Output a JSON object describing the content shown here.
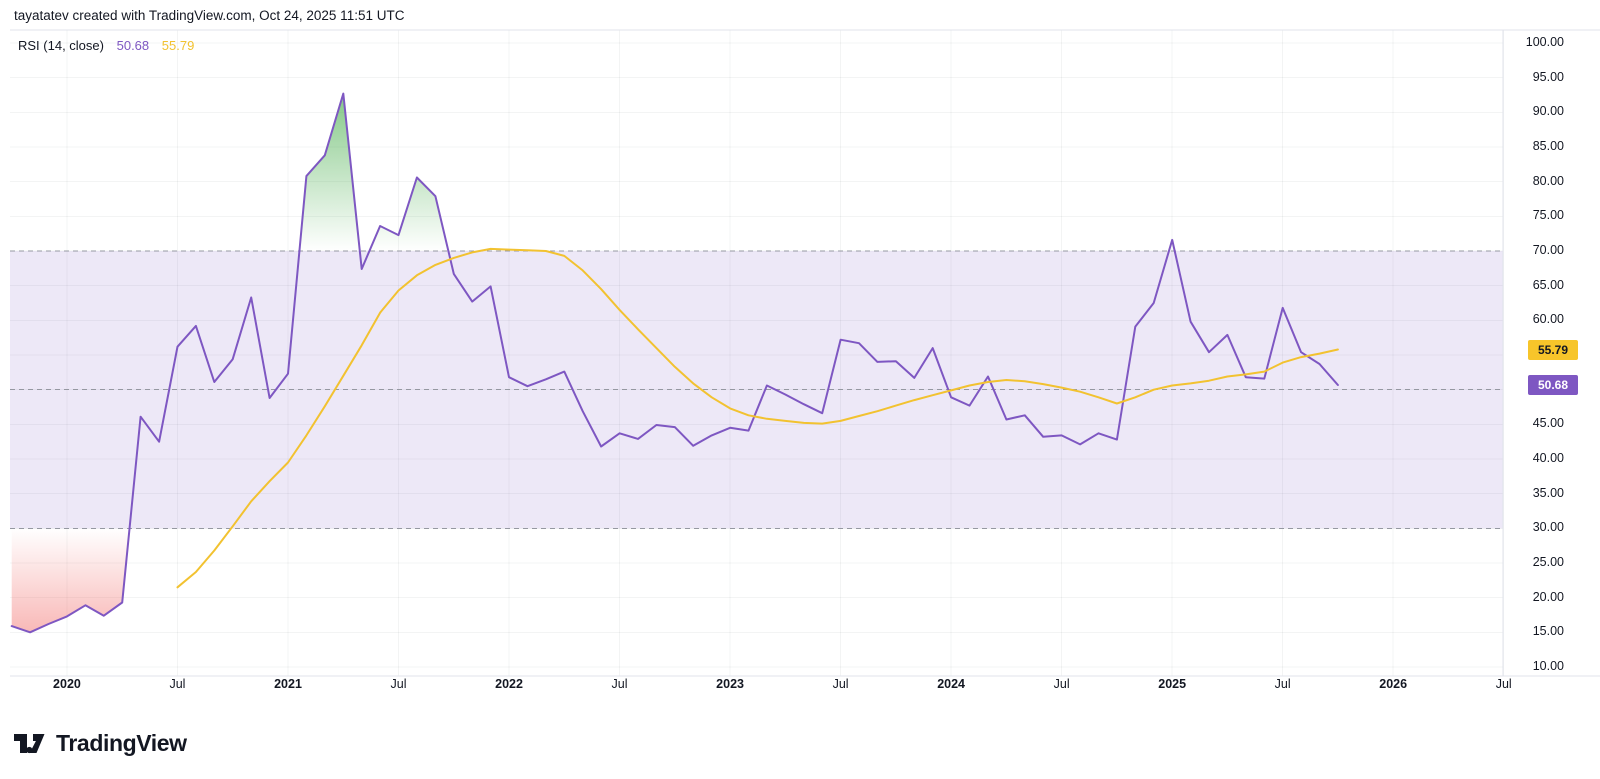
{
  "header": {
    "title": "tayatatev created with TradingView.com, Oct 24, 2025 11:51 UTC"
  },
  "legend": {
    "label": "RSI (14, close)",
    "rsi_value": "50.68",
    "ma_value": "55.79"
  },
  "logo": {
    "text": "TradingView"
  },
  "colors": {
    "rsi_line": "#7E57C2",
    "ma_line": "#F2C230",
    "band_fill": "rgba(106,66,193,0.12)",
    "overbought_fill": "#4CAF50",
    "oversold_fill": "#EF5350",
    "dashed_line": "#9598A1",
    "grid_line": "rgba(42,46,57,0.055)",
    "pane_border": "#E0E3EB",
    "text": "#131722",
    "badge_rsi_bg": "#7E57C2",
    "badge_rsi_text": "#FFFFFF",
    "badge_ma_bg": "#F7C52A",
    "badge_ma_text": "#131722"
  },
  "y_axis": {
    "ticks": [
      "100.00",
      "95.00",
      "90.00",
      "85.00",
      "80.00",
      "75.00",
      "70.00",
      "65.00",
      "60.00",
      "55.00",
      "50.00",
      "45.00",
      "40.00",
      "35.00",
      "30.00",
      "25.00",
      "20.00",
      "15.00",
      "10.00"
    ]
  },
  "x_axis": {
    "ticks": [
      {
        "label": "2020",
        "strong": true
      },
      {
        "label": "Jul",
        "strong": false
      },
      {
        "label": "2021",
        "strong": true
      },
      {
        "label": "Jul",
        "strong": false
      },
      {
        "label": "2022",
        "strong": true
      },
      {
        "label": "Jul",
        "strong": false
      },
      {
        "label": "2023",
        "strong": true
      },
      {
        "label": "Jul",
        "strong": false
      },
      {
        "label": "2024",
        "strong": true
      },
      {
        "label": "Jul",
        "strong": false
      },
      {
        "label": "2025",
        "strong": true
      },
      {
        "label": "Jul",
        "strong": false
      },
      {
        "label": "2026",
        "strong": true
      },
      {
        "label": "Jul",
        "strong": false
      }
    ]
  },
  "chart_data": {
    "type": "line",
    "title": "RSI (14, close)",
    "x_start": "Oct 2019",
    "x_end": "Oct 2025",
    "x_interval": "1 month",
    "ylim": [
      10,
      100
    ],
    "grid": true,
    "levels": {
      "overbought": 70,
      "middle": 50,
      "oversold": 30
    },
    "series": [
      {
        "name": "RSI",
        "color": "#7E57C2",
        "start_index": 0,
        "values": [
          15.9,
          15.0,
          16.2,
          17.3,
          18.9,
          17.4,
          19.3,
          46.1,
          42.5,
          56.2,
          59.2,
          51.1,
          54.4,
          63.3,
          48.8,
          52.3,
          80.8,
          83.8,
          92.7,
          67.4,
          73.6,
          72.3,
          80.6,
          77.9,
          66.7,
          62.7,
          64.9,
          51.8,
          50.5,
          51.5,
          52.6,
          46.9,
          41.8,
          43.7,
          42.9,
          44.9,
          44.6,
          41.9,
          43.4,
          44.5,
          44.1,
          50.6,
          49.3,
          47.9,
          46.6,
          57.2,
          56.7,
          54.0,
          54.1,
          51.7,
          56.0,
          48.9,
          47.7,
          51.9,
          45.7,
          46.3,
          43.2,
          43.4,
          42.1,
          43.7,
          42.8,
          59.1,
          62.5,
          71.6,
          59.8,
          55.4,
          57.9,
          51.8,
          51.6,
          61.8,
          55.4,
          53.7,
          50.68
        ]
      },
      {
        "name": "RSI-based MA",
        "color": "#F2C230",
        "start_index": 9,
        "values": [
          21.5,
          23.7,
          26.8,
          30.3,
          33.9,
          36.8,
          39.5,
          43.4,
          47.6,
          52.0,
          56.4,
          61.1,
          64.3,
          66.5,
          68.0,
          69.0,
          69.8,
          70.3,
          70.2,
          70.1,
          70.0,
          69.3,
          67.2,
          64.5,
          61.5,
          58.7,
          56.0,
          53.3,
          50.9,
          48.9,
          47.3,
          46.3,
          45.8,
          45.5,
          45.2,
          45.1,
          45.5,
          46.2,
          46.9,
          47.7,
          48.5,
          49.2,
          49.9,
          50.6,
          51.1,
          51.4,
          51.2,
          50.8,
          50.3,
          49.7,
          48.9,
          48.0,
          48.9,
          50.0,
          50.6,
          50.9,
          51.3,
          51.9,
          52.2,
          52.6,
          53.9,
          54.7,
          55.2,
          55.79
        ]
      }
    ]
  }
}
